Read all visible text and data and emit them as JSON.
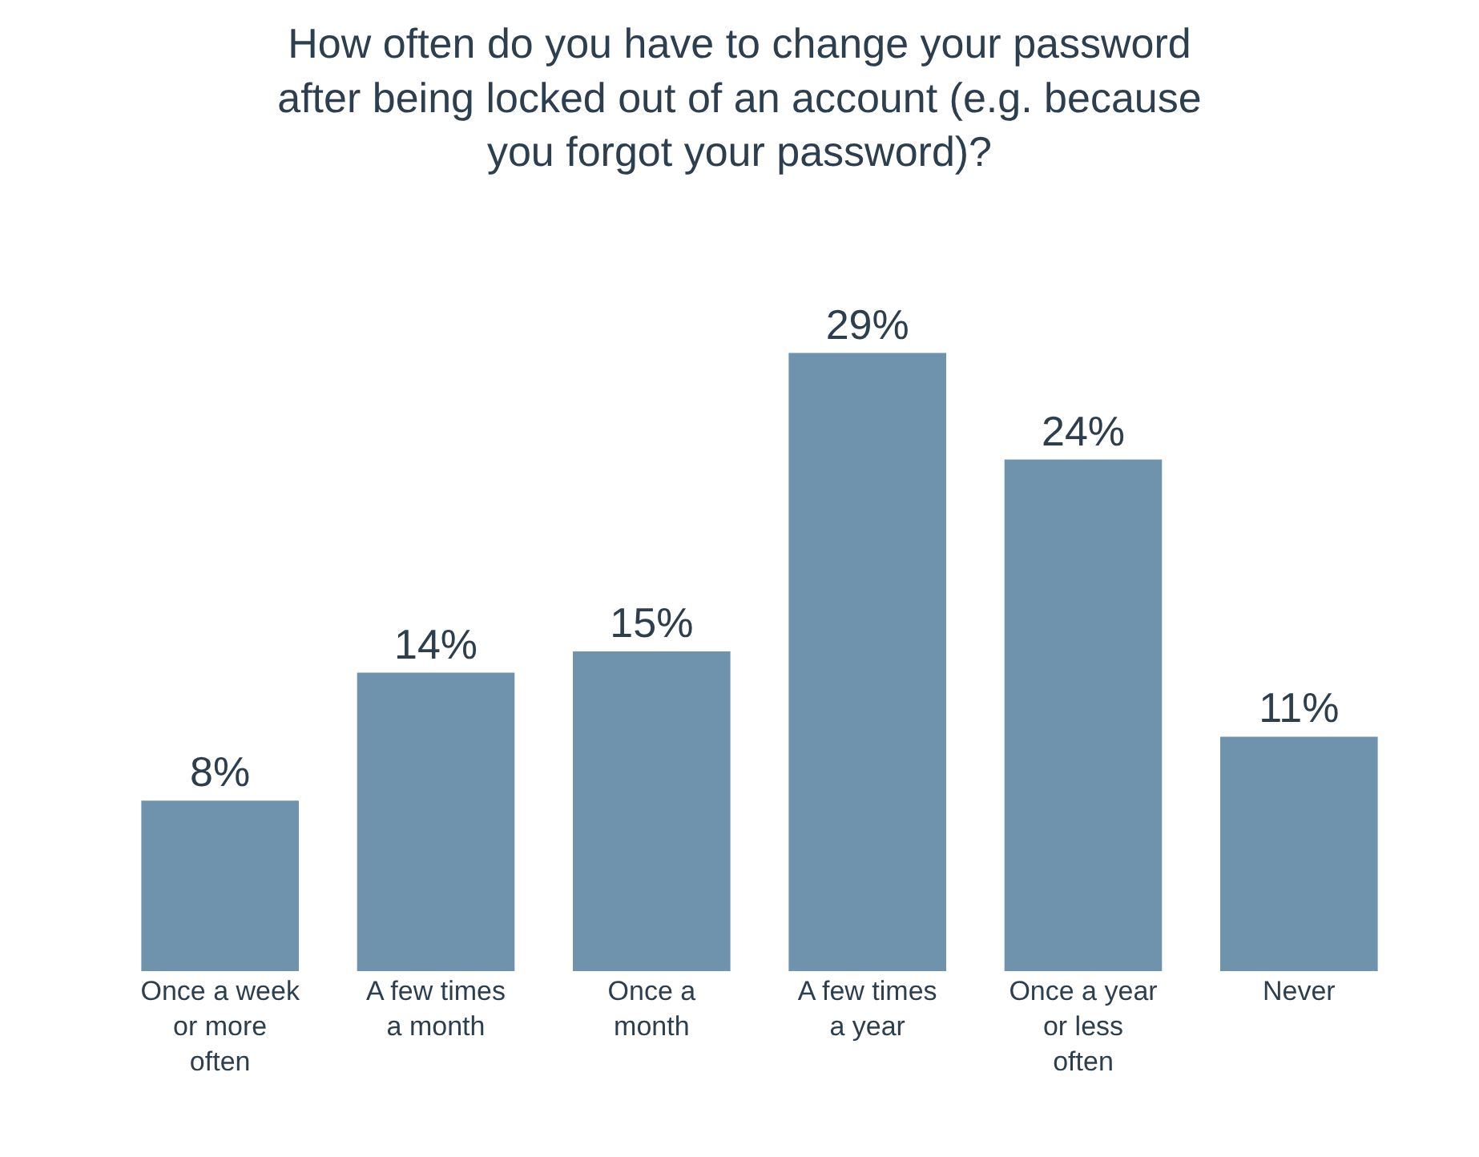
{
  "chart_data": {
    "type": "bar",
    "title": "How often do you have to change your password after being locked out of an account (e.g. because you forgot your password)?",
    "categories": [
      "Once a week or more often",
      "A few times a month",
      "Once a month",
      "A few times a year",
      "Once a year or less often",
      "Never"
    ],
    "values": [
      8,
      14,
      15,
      29,
      24,
      11
    ],
    "value_labels": [
      "8%",
      "14%",
      "15%",
      "29%",
      "24%",
      "11%"
    ],
    "color": "#6f93ad"
  }
}
